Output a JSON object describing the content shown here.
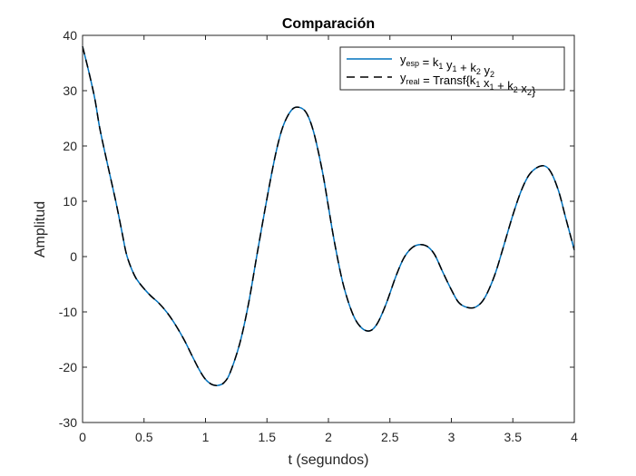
{
  "chart_data": {
    "type": "line",
    "title": "Comparación",
    "xlabel": "t (segundos)",
    "ylabel": "Amplitud",
    "xlim": [
      0,
      4
    ],
    "ylim": [
      -30,
      40
    ],
    "xticks": [
      0,
      0.5,
      1,
      1.5,
      2,
      2.5,
      3,
      3.5,
      4
    ],
    "xtick_labels": [
      "0",
      "0.5",
      "1",
      "1.5",
      "2",
      "2.5",
      "3",
      "3.5",
      "4"
    ],
    "yticks": [
      -30,
      -20,
      -10,
      0,
      10,
      20,
      30,
      40
    ],
    "ytick_labels": [
      "-30",
      "-20",
      "-10",
      "0",
      "10",
      "20",
      "30",
      "40"
    ],
    "grid": false,
    "legend_position": "northeast",
    "series": [
      {
        "name": "y_esp = k1 y1 + k2 y2",
        "color": "#0072BD",
        "style": "solid",
        "x": [
          0,
          0.05,
          0.1,
          0.14,
          0.2,
          0.27,
          0.32,
          0.36,
          0.42,
          0.47,
          0.55,
          0.62,
          0.69,
          0.76,
          0.83,
          0.89,
          0.95,
          1.0,
          1.05,
          1.1,
          1.15,
          1.2,
          1.28,
          1.35,
          1.42,
          1.5,
          1.57,
          1.63,
          1.7,
          1.76,
          1.82,
          1.88,
          1.95,
          2.0,
          2.05,
          2.12,
          2.2,
          2.27,
          2.34,
          2.4,
          2.47,
          2.55,
          2.62,
          2.7,
          2.79,
          2.86,
          2.93,
          3.0,
          3.06,
          3.13,
          3.2,
          3.27,
          3.35,
          3.42,
          3.5,
          3.57,
          3.64,
          3.73,
          3.8,
          3.87,
          3.93,
          4.0
        ],
        "y": [
          38,
          33.5,
          28.5,
          23.2,
          17,
          10,
          4.5,
          0.2,
          -3.3,
          -5,
          -7,
          -8.4,
          -10.2,
          -12.5,
          -15.2,
          -17.9,
          -20.5,
          -22.2,
          -23.1,
          -23.3,
          -22.8,
          -21,
          -15.6,
          -8.5,
          0.5,
          10.5,
          18.5,
          23.5,
          26.5,
          27,
          26,
          22.5,
          15.5,
          9,
          2.5,
          -5,
          -10.5,
          -12.9,
          -13.4,
          -12,
          -8.5,
          -3.5,
          0,
          1.9,
          2,
          0.5,
          -2.8,
          -6,
          -8.3,
          -9.2,
          -9.1,
          -7.5,
          -3.5,
          1.5,
          7.5,
          12,
          15,
          16.4,
          15.6,
          12,
          7,
          1.2
        ]
      },
      {
        "name": "y_real = Transf{k1 x1 + k2 x2}",
        "color": "#000000",
        "style": "dashed",
        "x": [
          0,
          0.05,
          0.1,
          0.14,
          0.2,
          0.27,
          0.32,
          0.36,
          0.42,
          0.47,
          0.55,
          0.62,
          0.69,
          0.76,
          0.83,
          0.89,
          0.95,
          1.0,
          1.05,
          1.1,
          1.15,
          1.2,
          1.28,
          1.35,
          1.42,
          1.5,
          1.57,
          1.63,
          1.7,
          1.76,
          1.82,
          1.88,
          1.95,
          2.0,
          2.05,
          2.12,
          2.2,
          2.27,
          2.34,
          2.4,
          2.47,
          2.55,
          2.62,
          2.7,
          2.79,
          2.86,
          2.93,
          3.0,
          3.06,
          3.13,
          3.2,
          3.27,
          3.35,
          3.42,
          3.5,
          3.57,
          3.64,
          3.73,
          3.8,
          3.87,
          3.93,
          4.0
        ],
        "y": [
          38,
          33.5,
          28.5,
          23.2,
          17,
          10,
          4.5,
          0.2,
          -3.3,
          -5,
          -7,
          -8.4,
          -10.2,
          -12.5,
          -15.2,
          -17.9,
          -20.5,
          -22.2,
          -23.1,
          -23.3,
          -22.8,
          -21,
          -15.6,
          -8.5,
          0.5,
          10.5,
          18.5,
          23.5,
          26.5,
          27,
          26,
          22.5,
          15.5,
          9,
          2.5,
          -5,
          -10.5,
          -12.9,
          -13.4,
          -12,
          -8.5,
          -3.5,
          0,
          1.9,
          2,
          0.5,
          -2.8,
          -6,
          -8.3,
          -9.2,
          -9.1,
          -7.5,
          -3.5,
          1.5,
          7.5,
          12,
          15,
          16.4,
          15.6,
          12,
          7,
          1.2
        ]
      }
    ]
  },
  "legend": {
    "entry1": {
      "base": "y",
      "sub": "esp",
      "eq": " = k",
      "parts": [
        {
          "t": "y",
          "s": "esp"
        },
        {
          "t": " = k",
          "s": "1"
        },
        {
          "t": " y",
          "s": "1"
        },
        {
          "t": " + k",
          "s": "2"
        },
        {
          "t": " y",
          "s": "2"
        }
      ]
    },
    "entry2": {
      "parts": [
        {
          "t": "y",
          "s": "real"
        },
        {
          "t": " = Transf{k",
          "s": "1"
        },
        {
          "t": " x",
          "s": "1"
        },
        {
          "t": " + k",
          "s": "2"
        },
        {
          "t": " x",
          "s": "2"
        },
        {
          "t": "}",
          "s": ""
        }
      ]
    }
  }
}
